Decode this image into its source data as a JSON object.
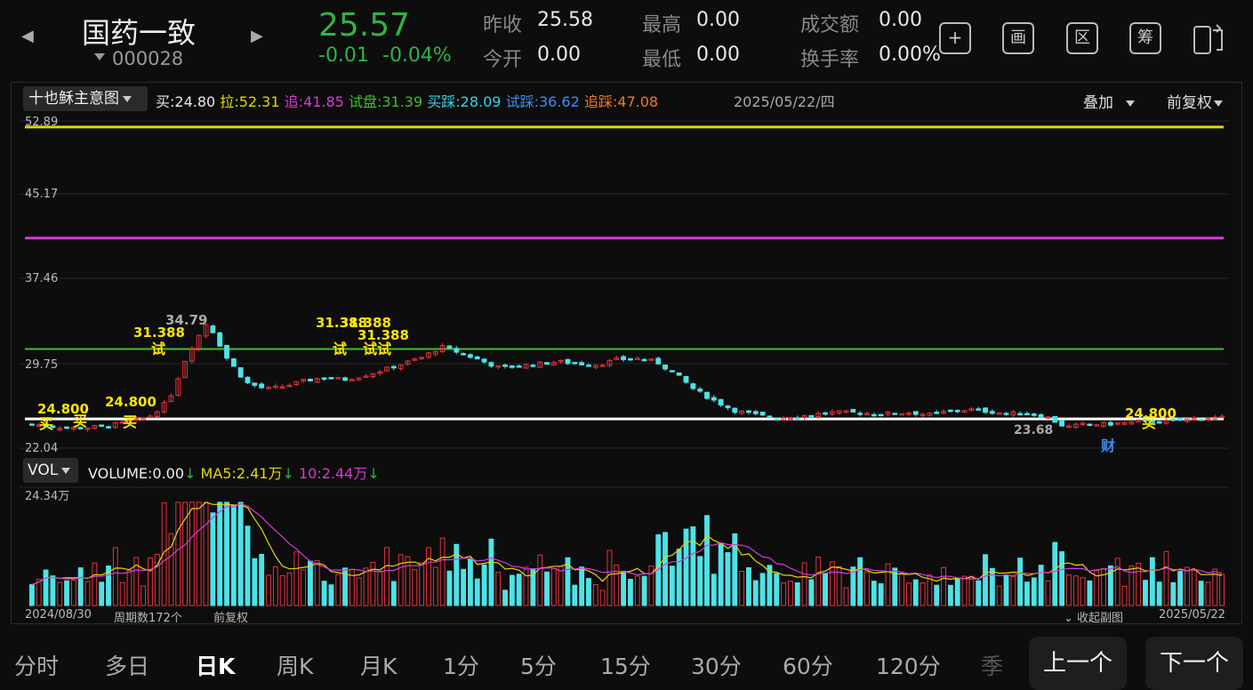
{
  "header": {
    "name": "国药一致",
    "code": "000028",
    "price": "25.57",
    "change": "-0.01",
    "change_pct": "-0.04%",
    "quotes": [
      {
        "label": "昨收",
        "value": "25.58"
      },
      {
        "label": "今开",
        "value": "0.00"
      },
      {
        "label": "最高",
        "value": "0.00"
      },
      {
        "label": "最低",
        "value": "0.00"
      },
      {
        "label": "成交额",
        "value": "0.00"
      },
      {
        "label": "换手率",
        "value": "0.00%"
      }
    ],
    "tools": [
      {
        "label": "+",
        "icon": "plus-icon"
      },
      {
        "label": "画",
        "icon": "draw-icon"
      },
      {
        "label": "区",
        "icon": "range-icon"
      },
      {
        "label": "筹",
        "icon": "chips-icon"
      }
    ]
  },
  "indicator": {
    "name": "十也稣主意图",
    "legend": [
      {
        "label": "买:",
        "value": "24.80",
        "color": "#e8e8e8"
      },
      {
        "label": "拉:",
        "value": "52.31",
        "color": "#e5d800"
      },
      {
        "label": "追:",
        "value": "41.85",
        "color": "#d83ad8"
      },
      {
        "label": "试盘:",
        "value": "31.39",
        "color": "#3fbf2a"
      },
      {
        "label": "买踩:",
        "value": "28.09",
        "color": "#35d3e6"
      },
      {
        "label": "试踩:",
        "value": "36.62",
        "color": "#3d8ef0"
      },
      {
        "label": "追踩:",
        "value": "47.08",
        "color": "#f07820"
      }
    ],
    "date": "2025/05/22/四",
    "overlay": "叠加",
    "adjust": "前复权"
  },
  "axis": {
    "price_ticks": [
      "52.89",
      "45.17",
      "37.46",
      "29.75",
      "22.04"
    ],
    "volume_top": "24.34万"
  },
  "annotations": {
    "high_label": "34.79",
    "low_label": "23.68",
    "buy_label": "24.800",
    "test_label": "31.388",
    "buy_marker": "买",
    "test_marker": "试",
    "fin_marker": "财"
  },
  "volume": {
    "name": "VOL",
    "vol_label": "VOLUME:",
    "vol_value": "0.00",
    "ma5_label": "MA5:",
    "ma5_value": "2.41万",
    "ma10_label": "10:",
    "ma10_value": "2.44万",
    "arrow": "↓"
  },
  "footer": {
    "start_date": "2024/08/30",
    "period": "周期数172个",
    "adjust": "前复权",
    "collapse": "收起副图",
    "end_date": "2025/05/22"
  },
  "timeframes": [
    "分时",
    "多日",
    "日K",
    "周K",
    "月K",
    "1分",
    "5分",
    "15分",
    "30分",
    "60分",
    "120分",
    "季"
  ],
  "active_timeframe": 2,
  "buttons": {
    "prev": "上一个",
    "next": "下一个"
  },
  "colors": {
    "up": "#e8333a",
    "down": "#4de3e8",
    "line_buy": "#ffffff",
    "line_pull": "#e5d800",
    "line_chase": "#d83ad8",
    "line_test": "#3fbf2a"
  },
  "chart_data": {
    "type": "candlestick",
    "count": 172,
    "price_range": [
      22.04,
      52.89
    ],
    "horizontal_lines": {
      "买": 24.8,
      "拉": 52.31,
      "追": 41.85,
      "试盘": 31.39
    },
    "close_path": [
      24.3,
      24.1,
      23.9,
      24.0,
      24.2,
      24.5,
      25.0,
      26.5,
      31.0,
      34.0,
      30.5,
      28.2,
      27.6,
      27.9,
      28.4,
      28.7,
      28.5,
      28.9,
      29.4,
      30.0,
      30.6,
      31.6,
      31.0,
      30.3,
      29.6,
      29.8,
      30.0,
      30.2,
      30.0,
      29.9,
      30.4,
      30.5,
      30.2,
      29.0,
      27.5,
      26.5,
      25.6,
      25.2,
      24.9,
      25.0,
      25.2,
      25.4,
      25.4,
      25.3,
      25.3,
      25.4,
      25.2,
      25.5,
      25.7,
      25.5,
      25.3,
      25.3,
      25.0,
      24.0,
      24.3,
      24.3,
      24.4,
      24.6,
      24.5,
      24.7,
      24.9,
      24.9
    ],
    "volume_max": "24.34万"
  }
}
